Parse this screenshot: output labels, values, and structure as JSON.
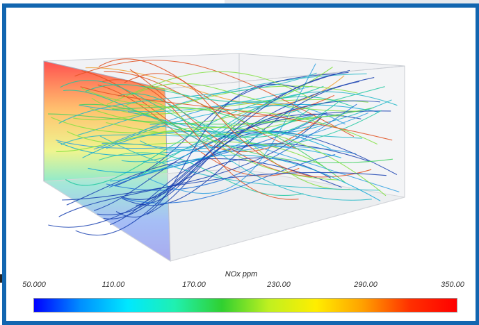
{
  "colorbar": {
    "title": "NOx ppm",
    "ticks": [
      "50.000",
      "110.00",
      "170.00",
      "230.00",
      "290.00",
      "350.00"
    ],
    "range": [
      50,
      350
    ]
  },
  "colors": {
    "frame": "#1266b0",
    "scale": [
      "#0000ff",
      "#0090ff",
      "#00e8ff",
      "#20f0b0",
      "#30d030",
      "#c0f020",
      "#ffee00",
      "#ffa000",
      "#ff3000",
      "#ff0000"
    ]
  }
}
